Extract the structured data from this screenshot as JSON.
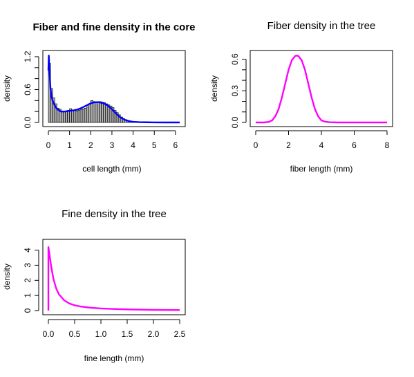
{
  "chart_data": [
    {
      "type": "histogram+line",
      "title": "Fiber and fine density in the core",
      "title_bold": true,
      "xlabel": "cell length (mm)",
      "ylabel": "density",
      "xlim": [
        0,
        6.2
      ],
      "ylim": [
        0,
        1.25
      ],
      "xticks": [
        0,
        1,
        2,
        3,
        4,
        5,
        6
      ],
      "yticks": [
        0.0,
        0.6,
        1.2
      ],
      "ytick_labels": [
        "0.0",
        "0.6",
        "1.2"
      ],
      "grid": false,
      "histogram": {
        "color": "#000000",
        "fill": "#b0b0b0",
        "bin_width": 0.1,
        "bin_start": 0.0,
        "values": [
          1.08,
          0.62,
          0.45,
          0.34,
          0.26,
          0.24,
          0.21,
          0.2,
          0.21,
          0.22,
          0.25,
          0.23,
          0.22,
          0.21,
          0.22,
          0.24,
          0.24,
          0.26,
          0.28,
          0.34,
          0.4,
          0.38,
          0.36,
          0.38,
          0.38,
          0.37,
          0.36,
          0.34,
          0.32,
          0.3,
          0.27,
          0.22,
          0.18,
          0.14,
          0.1,
          0.07,
          0.05,
          0.03,
          0.02,
          0.01,
          0.01
        ]
      },
      "series": [
        {
          "color": "#0000ff",
          "x": [
            0.0,
            0.02,
            0.05,
            0.1,
            0.15,
            0.2,
            0.3,
            0.4,
            0.5,
            0.6,
            0.7,
            0.8,
            0.9,
            1.0,
            1.2,
            1.4,
            1.6,
            1.8,
            2.0,
            2.2,
            2.4,
            2.6,
            2.8,
            3.0,
            3.2,
            3.4,
            3.6,
            3.8,
            4.0,
            4.3,
            4.6,
            5.0,
            5.5,
            6.2
          ],
          "y": [
            0.95,
            1.22,
            0.95,
            0.62,
            0.47,
            0.4,
            0.31,
            0.25,
            0.22,
            0.2,
            0.2,
            0.2,
            0.21,
            0.21,
            0.22,
            0.24,
            0.27,
            0.31,
            0.35,
            0.37,
            0.37,
            0.35,
            0.31,
            0.24,
            0.16,
            0.09,
            0.05,
            0.025,
            0.012,
            0.006,
            0.003,
            0.001,
            0.0,
            0.0
          ]
        }
      ]
    },
    {
      "type": "line",
      "title": "Fiber density in the tree",
      "title_bold": false,
      "xlabel": "fiber length (mm)",
      "ylabel": "density",
      "xlim": [
        0,
        8
      ],
      "ylim": [
        0,
        0.65
      ],
      "xticks": [
        0,
        2,
        4,
        6,
        8
      ],
      "yticks": [
        0.0,
        0.3,
        0.6
      ],
      "ytick_labels": [
        "0.0",
        "0.3",
        "0.6"
      ],
      "grid": false,
      "series": [
        {
          "color": "#ff00ff",
          "x": [
            0.0,
            0.5,
            0.8,
            1.0,
            1.2,
            1.4,
            1.6,
            1.8,
            2.0,
            2.2,
            2.4,
            2.5,
            2.6,
            2.8,
            3.0,
            3.2,
            3.4,
            3.6,
            3.8,
            4.0,
            4.2,
            4.5,
            5.0,
            6.0,
            7.0,
            8.0
          ],
          "y": [
            0.0,
            0.0,
            0.005,
            0.02,
            0.06,
            0.13,
            0.24,
            0.37,
            0.5,
            0.59,
            0.63,
            0.635,
            0.63,
            0.59,
            0.5,
            0.37,
            0.24,
            0.13,
            0.06,
            0.02,
            0.008,
            0.002,
            0.0,
            0.0,
            0.0,
            0.0
          ]
        }
      ]
    },
    {
      "type": "line",
      "title": "Fine density in the tree",
      "title_bold": false,
      "xlabel": "fine length (mm)",
      "ylabel": "density",
      "xlim": [
        0,
        2.5
      ],
      "ylim": [
        0,
        4.3
      ],
      "xticks": [
        0.0,
        0.5,
        1.0,
        1.5,
        2.0,
        2.5
      ],
      "xtick_labels": [
        "0.0",
        "0.5",
        "1.0",
        "1.5",
        "2.0",
        "2.5"
      ],
      "yticks": [
        0,
        1,
        2,
        3,
        4
      ],
      "ytick_labels": [
        "0",
        "1",
        "2",
        "3",
        "4"
      ],
      "grid": false,
      "series": [
        {
          "color": "#ff00ff",
          "x": [
            0.0,
            0.0,
            0.02,
            0.05,
            0.08,
            0.1,
            0.15,
            0.2,
            0.3,
            0.4,
            0.5,
            0.6,
            0.8,
            1.0,
            1.2,
            1.5,
            1.8,
            2.0,
            2.2,
            2.5
          ],
          "y": [
            0.0,
            4.2,
            3.75,
            3.0,
            2.4,
            2.05,
            1.45,
            1.08,
            0.68,
            0.47,
            0.35,
            0.28,
            0.19,
            0.14,
            0.11,
            0.08,
            0.06,
            0.05,
            0.045,
            0.035
          ]
        }
      ]
    }
  ]
}
